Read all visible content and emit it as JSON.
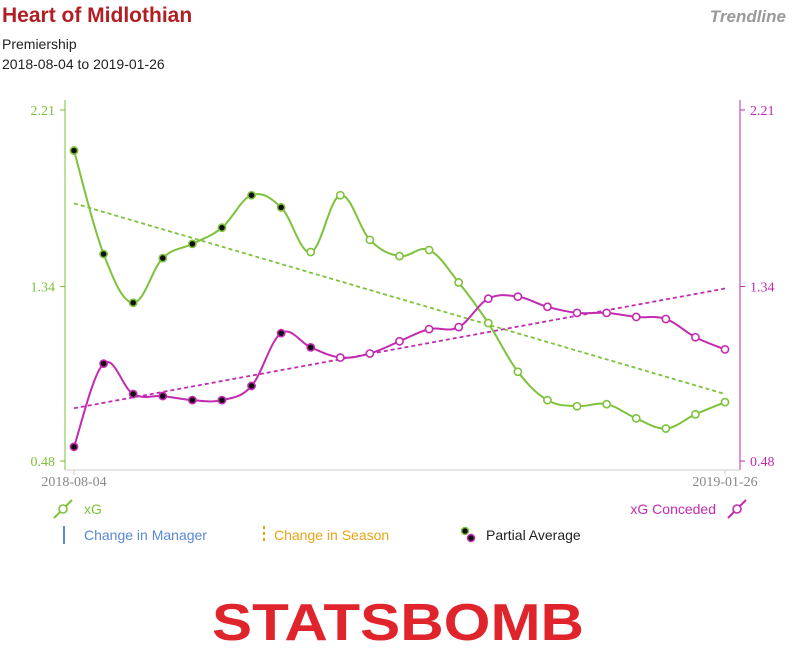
{
  "header": {
    "title": "Heart of Midlothian",
    "competition": "Premiership",
    "date_range": "2018-08-04 to 2019-01-26",
    "mode": "Trendline"
  },
  "legend": {
    "xg": "xG",
    "xg_conceded": "xG Conceded",
    "manager": "Change in Manager",
    "season": "Change in Season",
    "partial": "Partial Average"
  },
  "logo": {
    "text": "STATSBOMB"
  },
  "colors": {
    "xg": "#7dc23b",
    "xg_conceded": "#c22bb1",
    "manager": "#5a87d9",
    "season": "#e8a317",
    "title": "#b11f24",
    "logo": "#e0242b"
  },
  "chart_data": {
    "type": "line",
    "x_start_label": "2018-08-04",
    "x_end_label": "2019-01-26",
    "ylim": [
      0.48,
      2.21
    ],
    "y_ticks_left": [
      "2.21",
      "1.34",
      "0.48"
    ],
    "y_ticks_right": [
      "2.21",
      "1.34",
      "0.48"
    ],
    "series": [
      {
        "name": "xG",
        "values": [
          2.01,
          1.5,
          1.26,
          1.48,
          1.55,
          1.63,
          1.79,
          1.73,
          1.51,
          1.79,
          1.57,
          1.49,
          1.52,
          1.36,
          1.16,
          0.92,
          0.78,
          0.75,
          0.76,
          0.69,
          0.64,
          0.71,
          0.77
        ],
        "partial": [
          true,
          true,
          true,
          true,
          true,
          true,
          true,
          true,
          false,
          false,
          false,
          false,
          false,
          false,
          false,
          false,
          false,
          false,
          false,
          false,
          false,
          false,
          false
        ],
        "trend": [
          1.75,
          0.81
        ]
      },
      {
        "name": "xG Conceded",
        "values": [
          0.55,
          0.96,
          0.81,
          0.8,
          0.78,
          0.78,
          0.85,
          1.11,
          1.04,
          0.99,
          1.01,
          1.07,
          1.13,
          1.14,
          1.28,
          1.29,
          1.24,
          1.21,
          1.21,
          1.19,
          1.18,
          1.09,
          1.03
        ],
        "partial": [
          true,
          true,
          true,
          true,
          true,
          true,
          true,
          true,
          true,
          false,
          false,
          false,
          false,
          false,
          false,
          false,
          false,
          false,
          false,
          false,
          false,
          false,
          false
        ],
        "trend": [
          0.74,
          1.33
        ]
      }
    ]
  }
}
